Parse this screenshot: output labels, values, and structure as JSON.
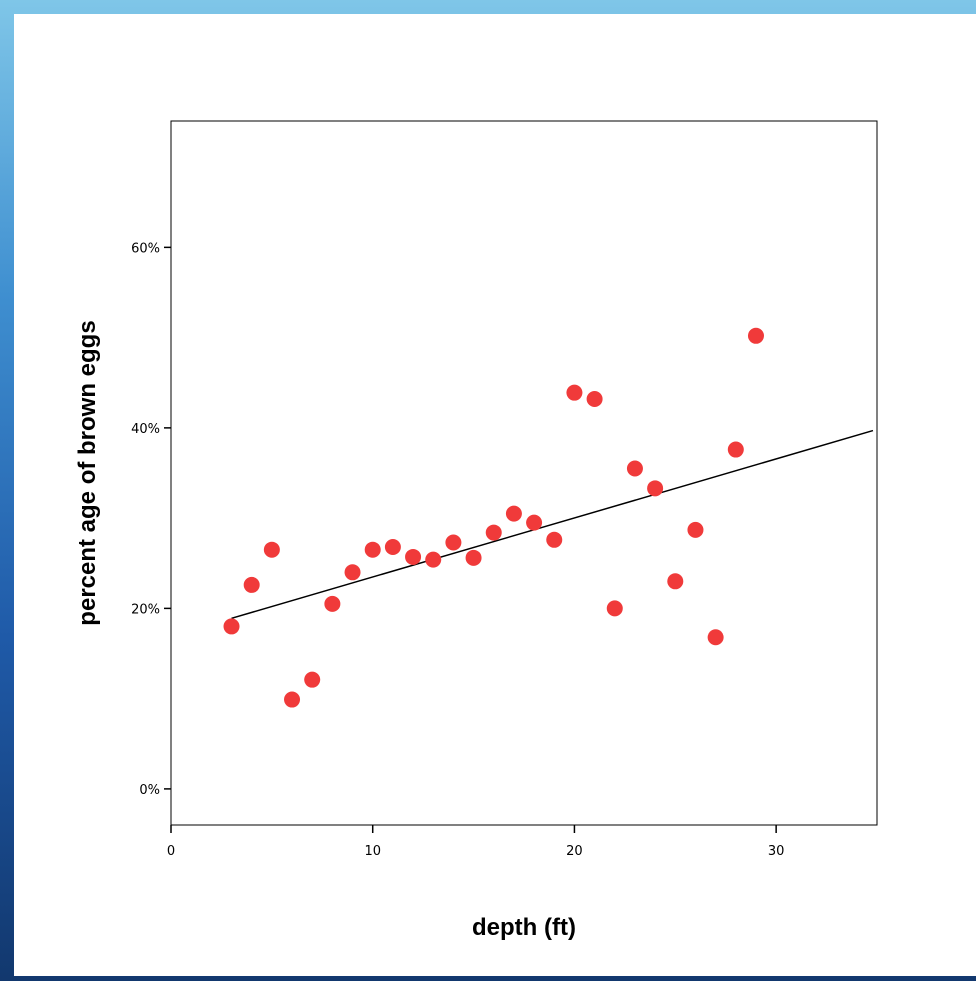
{
  "chart_data": {
    "type": "scatter",
    "title": "",
    "xlabel": "depth (ft)",
    "ylabel": "percent age of brown eggs",
    "xlim": [
      0,
      35
    ],
    "ylim": [
      -4,
      74
    ],
    "x_ticks": [
      0,
      10,
      20,
      30
    ],
    "x_tick_labels": [
      "0",
      "10",
      "20",
      "30"
    ],
    "y_ticks": [
      0,
      20,
      40,
      60
    ],
    "y_tick_labels": [
      "0%",
      "20%",
      "40%",
      "60%"
    ],
    "grid": false,
    "legend": false,
    "point_color": "#f03a3a",
    "series": [
      {
        "x": [
          3,
          4,
          5,
          6,
          7,
          8,
          9,
          10,
          11,
          12,
          13,
          14,
          15,
          16,
          17,
          18,
          19,
          20,
          21,
          22,
          23,
          24,
          25,
          26,
          27,
          28,
          29
        ],
        "y": [
          18.0,
          22.6,
          26.5,
          9.9,
          12.1,
          20.5,
          24.0,
          26.5,
          26.8,
          25.7,
          25.4,
          27.3,
          25.6,
          28.4,
          30.5,
          29.5,
          27.6,
          43.9,
          43.2,
          20.0,
          35.5,
          33.3,
          23.0,
          28.7,
          16.8,
          37.6,
          50.2
        ]
      }
    ],
    "fit_line": {
      "x": [
        3,
        34.8
      ],
      "y": [
        18.9,
        39.7
      ]
    }
  }
}
